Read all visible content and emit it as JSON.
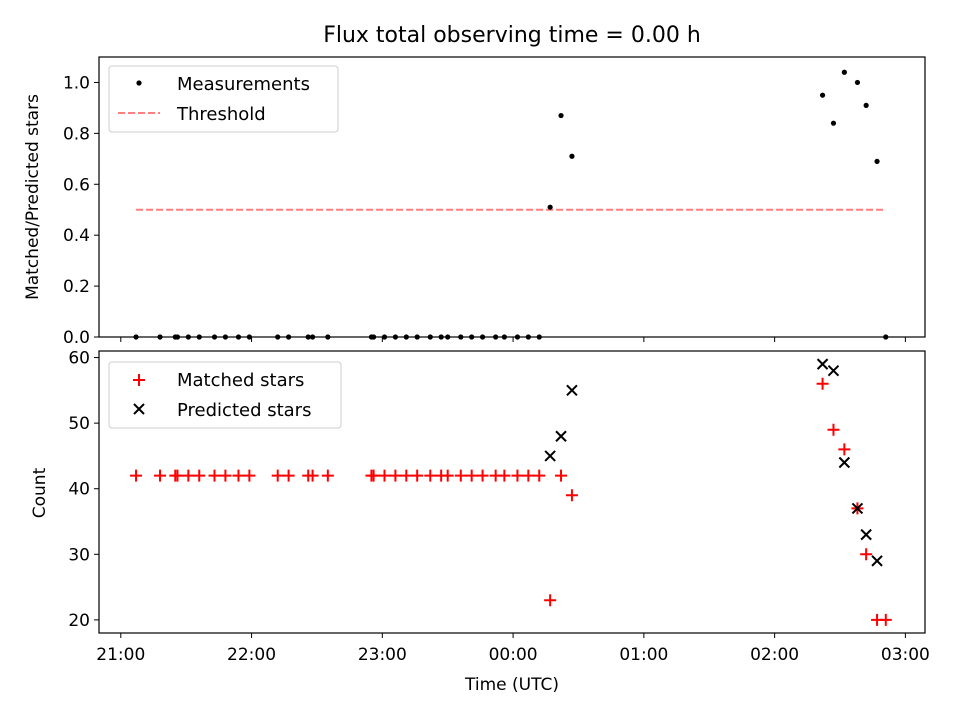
{
  "chart_data": [
    {
      "type": "scatter",
      "title": "Flux total observing time = 0.00 h",
      "xlabel": "",
      "ylabel": "Matched/Predicted stars",
      "ylim": [
        0,
        1.1
      ],
      "y_ticks": [
        "0.0",
        "0.2",
        "0.4",
        "0.6",
        "0.8",
        "1.0"
      ],
      "legend": {
        "placement": "upper-left",
        "entries": [
          "Measurements",
          "Threshold"
        ]
      },
      "colors": {
        "measurements": "#000000",
        "threshold": "#ff7f7f"
      },
      "threshold": {
        "value": 0.5,
        "from": "21:07",
        "to": "02:51"
      },
      "series": [
        {
          "name": "Measurements",
          "points": [
            [
              "21:07",
              0
            ],
            [
              "21:18",
              0
            ],
            [
              "21:25",
              0
            ],
            [
              "21:26",
              0
            ],
            [
              "21:31",
              0
            ],
            [
              "21:36",
              0
            ],
            [
              "21:43",
              0
            ],
            [
              "21:48",
              0
            ],
            [
              "21:54",
              0
            ],
            [
              "21:59",
              0
            ],
            [
              "22:12",
              0
            ],
            [
              "22:17",
              0
            ],
            [
              "22:26",
              0
            ],
            [
              "22:28",
              0
            ],
            [
              "22:35",
              0
            ],
            [
              "22:55",
              0
            ],
            [
              "22:56",
              0
            ],
            [
              "23:01",
              0
            ],
            [
              "23:06",
              0
            ],
            [
              "23:11",
              0
            ],
            [
              "23:16",
              0
            ],
            [
              "23:22",
              0
            ],
            [
              "23:27",
              0
            ],
            [
              "23:30",
              0
            ],
            [
              "23:36",
              0
            ],
            [
              "23:41",
              0
            ],
            [
              "23:46",
              0
            ],
            [
              "23:52",
              0
            ],
            [
              "23:56",
              0
            ],
            [
              "00:02",
              0
            ],
            [
              "00:07",
              0
            ],
            [
              "00:12",
              0
            ],
            [
              "00:17",
              0.51
            ],
            [
              "00:22",
              0.87
            ],
            [
              "00:27",
              0.71
            ],
            [
              "02:22",
              0.95
            ],
            [
              "02:27",
              0.84
            ],
            [
              "02:32",
              1.04
            ],
            [
              "02:38",
              1.0
            ],
            [
              "02:42",
              0.91
            ],
            [
              "02:47",
              0.69
            ],
            [
              "02:51",
              0
            ]
          ]
        }
      ]
    },
    {
      "type": "scatter",
      "title": "",
      "xlabel": "Time (UTC)",
      "ylabel": "Count",
      "ylim": [
        18,
        61
      ],
      "y_ticks": [
        "20",
        "30",
        "40",
        "50",
        "60"
      ],
      "x_ticks": [
        "21:00",
        "22:00",
        "23:00",
        "00:00",
        "01:00",
        "02:00",
        "03:00"
      ],
      "legend": {
        "placement": "upper-left",
        "entries": [
          "Matched stars",
          "Predicted stars"
        ]
      },
      "colors": {
        "matched": "#ff0000",
        "predicted": "#000000"
      },
      "series": [
        {
          "name": "Matched stars",
          "marker": "plus",
          "points": [
            [
              "21:07",
              42
            ],
            [
              "21:18",
              42
            ],
            [
              "21:25",
              42
            ],
            [
              "21:26",
              42
            ],
            [
              "21:31",
              42
            ],
            [
              "21:36",
              42
            ],
            [
              "21:43",
              42
            ],
            [
              "21:48",
              42
            ],
            [
              "21:54",
              42
            ],
            [
              "21:59",
              42
            ],
            [
              "22:12",
              42
            ],
            [
              "22:17",
              42
            ],
            [
              "22:26",
              42
            ],
            [
              "22:28",
              42
            ],
            [
              "22:35",
              42
            ],
            [
              "22:55",
              42
            ],
            [
              "22:56",
              42
            ],
            [
              "23:01",
              42
            ],
            [
              "23:06",
              42
            ],
            [
              "23:11",
              42
            ],
            [
              "23:16",
              42
            ],
            [
              "23:22",
              42
            ],
            [
              "23:27",
              42
            ],
            [
              "23:30",
              42
            ],
            [
              "23:36",
              42
            ],
            [
              "23:41",
              42
            ],
            [
              "23:46",
              42
            ],
            [
              "23:52",
              42
            ],
            [
              "23:56",
              42
            ],
            [
              "00:02",
              42
            ],
            [
              "00:07",
              42
            ],
            [
              "00:12",
              42
            ],
            [
              "00:17",
              23
            ],
            [
              "00:22",
              42
            ],
            [
              "00:27",
              39
            ],
            [
              "02:22",
              56
            ],
            [
              "02:27",
              49
            ],
            [
              "02:32",
              46
            ],
            [
              "02:38",
              37
            ],
            [
              "02:42",
              30
            ],
            [
              "02:47",
              20
            ],
            [
              "02:51",
              20
            ]
          ]
        },
        {
          "name": "Predicted stars",
          "marker": "x",
          "points": [
            [
              "00:17",
              45
            ],
            [
              "00:22",
              48
            ],
            [
              "00:27",
              55
            ],
            [
              "02:22",
              59
            ],
            [
              "02:27",
              58
            ],
            [
              "02:32",
              44
            ],
            [
              "02:38",
              37
            ],
            [
              "02:42",
              33
            ],
            [
              "02:47",
              29
            ]
          ]
        }
      ]
    }
  ]
}
